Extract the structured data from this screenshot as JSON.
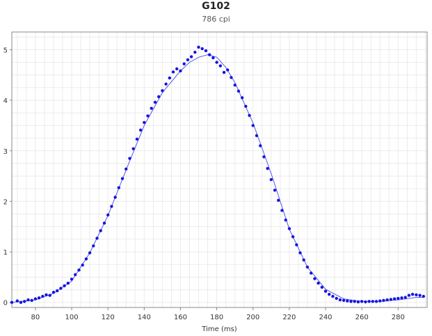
{
  "chart_data": {
    "type": "scatter",
    "title": "G102",
    "subtitle": "786 cpi",
    "xlabel": "Time (ms)",
    "ylabel": "",
    "xlim": [
      67,
      296
    ],
    "ylim": [
      -0.1,
      5.35
    ],
    "x_ticks": [
      80,
      100,
      120,
      140,
      160,
      180,
      200,
      220,
      240,
      260,
      280
    ],
    "y_ticks": [
      0,
      1,
      2,
      3,
      4,
      5
    ],
    "grid": true,
    "legend": "none",
    "colors": {
      "points": "#1515e0",
      "line": "#5555ee",
      "grid": "#ebebeb",
      "axis": "#888888"
    },
    "series": [
      {
        "type": "scatter",
        "x": [
          67,
          70,
          72,
          74,
          76,
          78,
          80,
          82,
          84,
          86,
          88,
          90,
          92,
          94,
          96,
          98,
          100,
          102,
          104,
          106,
          108,
          110,
          112,
          114,
          116,
          118,
          120,
          122,
          124,
          126,
          128,
          130,
          132,
          134,
          136,
          138,
          140,
          142,
          144,
          146,
          148,
          150,
          152,
          154,
          156,
          158,
          160,
          162,
          164,
          166,
          168,
          170,
          172,
          174,
          176,
          178,
          180,
          182,
          184,
          186,
          188,
          190,
          192,
          194,
          196,
          198,
          200,
          202,
          204,
          206,
          208,
          210,
          212,
          214,
          216,
          218,
          220,
          222,
          224,
          226,
          228,
          230,
          232,
          234,
          236,
          238,
          240,
          242,
          244,
          246,
          248,
          250,
          252,
          254,
          256,
          258,
          260,
          262,
          264,
          266,
          268,
          270,
          272,
          274,
          276,
          278,
          280,
          282,
          284,
          286,
          288,
          290,
          292,
          294
        ],
        "y": [
          0.0,
          0.03,
          0.0,
          0.02,
          0.05,
          0.04,
          0.07,
          0.09,
          0.12,
          0.15,
          0.14,
          0.2,
          0.23,
          0.28,
          0.33,
          0.38,
          0.46,
          0.55,
          0.64,
          0.74,
          0.86,
          0.98,
          1.12,
          1.27,
          1.42,
          1.57,
          1.73,
          1.9,
          2.08,
          2.27,
          2.45,
          2.64,
          2.85,
          3.04,
          3.23,
          3.41,
          3.56,
          3.69,
          3.84,
          3.96,
          4.07,
          4.19,
          4.32,
          4.44,
          4.56,
          4.62,
          4.58,
          4.72,
          4.8,
          4.86,
          4.95,
          5.05,
          5.02,
          4.98,
          4.9,
          4.84,
          4.75,
          4.68,
          4.55,
          4.6,
          4.45,
          4.3,
          4.18,
          4.05,
          3.88,
          3.7,
          3.5,
          3.3,
          3.1,
          2.88,
          2.65,
          2.43,
          2.22,
          2.02,
          1.82,
          1.63,
          1.46,
          1.3,
          1.14,
          0.98,
          0.84,
          0.7,
          0.58,
          0.47,
          0.38,
          0.3,
          0.22,
          0.16,
          0.12,
          0.08,
          0.05,
          0.04,
          0.03,
          0.02,
          0.02,
          0.01,
          0.02,
          0.01,
          0.02,
          0.02,
          0.02,
          0.03,
          0.04,
          0.05,
          0.06,
          0.07,
          0.08,
          0.09,
          0.1,
          0.14,
          0.16,
          0.15,
          0.14,
          0.12
        ]
      },
      {
        "type": "line",
        "x": [
          67,
          80,
          90,
          100,
          110,
          120,
          130,
          140,
          150,
          160,
          165,
          170,
          175,
          180,
          185,
          190,
          200,
          210,
          220,
          230,
          240,
          250,
          260,
          270,
          280,
          290,
          294
        ],
        "y": [
          0.0,
          0.05,
          0.18,
          0.42,
          0.98,
          1.72,
          2.62,
          3.5,
          4.15,
          4.58,
          4.75,
          4.85,
          4.9,
          4.85,
          4.65,
          4.35,
          3.55,
          2.55,
          1.45,
          0.7,
          0.26,
          0.07,
          0.02,
          0.02,
          0.05,
          0.1,
          0.1
        ]
      }
    ]
  }
}
